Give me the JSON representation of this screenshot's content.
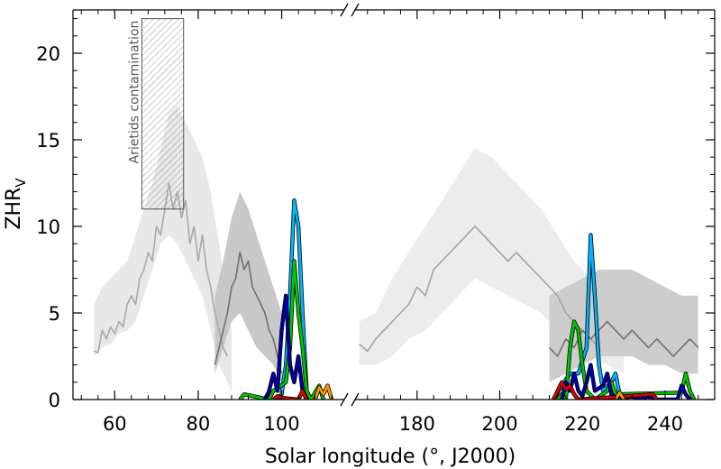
{
  "chart_data": {
    "type": "line",
    "xlabel": "Solar longitude (°, J2000)",
    "ylabel_main": "ZHR",
    "ylabel_sub": "V",
    "annotation": "Arietids contamination",
    "annotation_box": {
      "x": [
        66.5,
        76.5
      ],
      "y": [
        11,
        22
      ]
    },
    "ylim": [
      0,
      22.5
    ],
    "yticks": [
      0,
      5,
      10,
      15,
      20
    ],
    "panels": [
      {
        "xlim": [
          50,
          115
        ],
        "xticks": [
          60,
          80,
          100
        ]
      },
      {
        "xlim": [
          165,
          252
        ],
        "xticks": [
          180,
          200,
          220,
          240
        ]
      }
    ],
    "bands": [
      {
        "name": "light band left",
        "color": "#e8e8e8",
        "points": [
          [
            55,
            2.5,
            5.5
          ],
          [
            57,
            3,
            6.5
          ],
          [
            59,
            3.2,
            7
          ],
          [
            61,
            3.8,
            7.5
          ],
          [
            63,
            4,
            8
          ],
          [
            65,
            4.5,
            9.5
          ],
          [
            67,
            6,
            11
          ],
          [
            69,
            7.5,
            12.5
          ],
          [
            71,
            9,
            14.5
          ],
          [
            73,
            9.5,
            16.5
          ],
          [
            75,
            9,
            17
          ],
          [
            77,
            8,
            16
          ],
          [
            79,
            7,
            15
          ],
          [
            81,
            6,
            14
          ],
          [
            83,
            4,
            12
          ],
          [
            85,
            2,
            9
          ],
          [
            87,
            1,
            6
          ],
          [
            88,
            0.5,
            4
          ]
        ]
      },
      {
        "name": "dark band left",
        "color": "#c8c8c8",
        "points": [
          [
            84,
            1.5,
            6
          ],
          [
            86,
            3,
            8
          ],
          [
            88,
            4.5,
            10.5
          ],
          [
            90,
            5,
            12
          ],
          [
            92,
            4,
            11
          ],
          [
            94,
            3,
            9.5
          ],
          [
            96,
            2.5,
            8
          ],
          [
            98,
            2,
            6.5
          ],
          [
            100,
            1,
            5
          ]
        ]
      },
      {
        "name": "light band right",
        "color": "#ececec",
        "points": [
          [
            166,
            2,
            4.5
          ],
          [
            170,
            2,
            5
          ],
          [
            174,
            2.5,
            7
          ],
          [
            178,
            3.5,
            8.5
          ],
          [
            182,
            4,
            10
          ],
          [
            186,
            5,
            11.5
          ],
          [
            190,
            6,
            13
          ],
          [
            194,
            7,
            14.5
          ],
          [
            198,
            6.5,
            14
          ],
          [
            202,
            6,
            13
          ],
          [
            206,
            5.5,
            12
          ],
          [
            210,
            5,
            11
          ],
          [
            214,
            4,
            9.5
          ],
          [
            218,
            3,
            8
          ],
          [
            222,
            2.5,
            7
          ],
          [
            226,
            2,
            6
          ],
          [
            230,
            1.5,
            5.5
          ]
        ]
      },
      {
        "name": "dark band right",
        "color": "#cdcdcd",
        "points": [
          [
            212,
            1,
            6
          ],
          [
            216,
            1.5,
            6.5
          ],
          [
            220,
            2,
            7
          ],
          [
            224,
            2.5,
            7.5
          ],
          [
            228,
            2.5,
            7.5
          ],
          [
            232,
            2.5,
            7.5
          ],
          [
            236,
            2,
            7
          ],
          [
            240,
            2,
            6.5
          ],
          [
            244,
            1.5,
            6
          ],
          [
            248,
            1.5,
            6
          ]
        ]
      }
    ],
    "series": [
      {
        "color": "#a9a9a9",
        "width": 1.6,
        "points": [
          [
            55,
            2.8
          ],
          [
            56,
            2.7
          ],
          [
            57,
            4
          ],
          [
            58,
            3.5
          ],
          [
            59,
            4.2
          ],
          [
            60,
            3.8
          ],
          [
            61,
            4.5
          ],
          [
            62,
            4.2
          ],
          [
            63,
            5.5
          ],
          [
            64,
            6
          ],
          [
            65,
            5.5
          ],
          [
            66,
            7
          ],
          [
            67,
            7.5
          ],
          [
            68,
            8.5
          ],
          [
            69,
            8
          ],
          [
            70,
            10
          ],
          [
            71,
            9.5
          ],
          [
            72,
            11
          ],
          [
            73,
            12.5
          ],
          [
            74,
            11
          ],
          [
            75,
            12
          ],
          [
            76,
            10.5
          ],
          [
            77,
            11.5
          ],
          [
            78,
            9
          ],
          [
            79,
            10
          ],
          [
            80,
            8
          ],
          [
            81,
            9.5
          ],
          [
            82,
            7.5
          ],
          [
            83,
            6.5
          ],
          [
            84,
            5
          ],
          [
            85,
            4
          ],
          [
            86,
            3
          ],
          [
            87,
            2.5
          ]
        ]
      },
      {
        "color": "#6e6e6e",
        "width": 1.6,
        "points": [
          [
            84,
            2
          ],
          [
            85,
            3
          ],
          [
            86,
            4
          ],
          [
            87,
            5
          ],
          [
            88,
            6.5
          ],
          [
            89,
            7
          ],
          [
            90,
            8.5
          ],
          [
            91,
            7.5
          ],
          [
            92,
            8
          ],
          [
            93,
            6.5
          ],
          [
            94,
            6
          ],
          [
            95,
            5.5
          ],
          [
            96,
            5
          ],
          [
            97,
            4
          ],
          [
            98,
            3.5
          ],
          [
            99,
            2.5
          ],
          [
            100,
            1.5
          ]
        ]
      },
      {
        "color": "#a3a3a3",
        "width": 1.6,
        "points": [
          [
            166,
            3.2
          ],
          [
            168,
            2.8
          ],
          [
            170,
            3.5
          ],
          [
            172,
            4
          ],
          [
            174,
            4.5
          ],
          [
            176,
            5
          ],
          [
            178,
            5.5
          ],
          [
            180,
            6.5
          ],
          [
            182,
            6
          ],
          [
            184,
            7.5
          ],
          [
            186,
            8
          ],
          [
            188,
            8.5
          ],
          [
            190,
            9
          ],
          [
            192,
            9.5
          ],
          [
            194,
            10
          ],
          [
            196,
            9.5
          ],
          [
            198,
            9
          ],
          [
            200,
            8.5
          ],
          [
            202,
            8
          ],
          [
            204,
            8.5
          ],
          [
            206,
            8
          ],
          [
            208,
            7.5
          ],
          [
            210,
            7
          ],
          [
            212,
            6.5
          ],
          [
            214,
            6
          ],
          [
            216,
            5
          ],
          [
            218,
            4.5
          ],
          [
            220,
            4
          ],
          [
            222,
            3.5
          ],
          [
            224,
            3
          ]
        ]
      },
      {
        "color": "#707070",
        "width": 1.6,
        "points": [
          [
            212,
            3
          ],
          [
            214,
            2.5
          ],
          [
            216,
            3.5
          ],
          [
            218,
            3
          ],
          [
            220,
            4
          ],
          [
            222,
            3.5
          ],
          [
            224,
            4
          ],
          [
            226,
            4.5
          ],
          [
            228,
            4
          ],
          [
            230,
            3.5
          ],
          [
            232,
            4
          ],
          [
            234,
            3.5
          ],
          [
            236,
            3
          ],
          [
            238,
            3.5
          ],
          [
            240,
            3
          ],
          [
            242,
            2.5
          ],
          [
            244,
            3
          ],
          [
            246,
            3.5
          ],
          [
            248,
            3
          ]
        ]
      },
      {
        "color": "#00b4ff",
        "width": 2.8,
        "points": [
          [
            99,
            0
          ],
          [
            100,
            0.3
          ],
          [
            101,
            2
          ],
          [
            102,
            6
          ],
          [
            103,
            11.5
          ],
          [
            104,
            10
          ],
          [
            105,
            5
          ],
          [
            106,
            0.5
          ],
          [
            107,
            0
          ]
        ]
      },
      {
        "color": "#00c800",
        "width": 2.8,
        "points": [
          [
            90,
            0
          ],
          [
            91,
            0.3
          ],
          [
            97,
            0
          ],
          [
            98,
            0.5
          ],
          [
            101,
            1
          ],
          [
            102,
            3
          ],
          [
            103,
            8
          ],
          [
            104,
            5
          ],
          [
            105,
            3
          ],
          [
            106,
            0.5
          ],
          [
            107,
            0
          ],
          [
            109,
            0.8
          ],
          [
            110,
            0
          ]
        ]
      },
      {
        "color": "#0000aa",
        "width": 2.8,
        "points": [
          [
            96,
            0
          ],
          [
            97,
            0.5
          ],
          [
            98,
            1.5
          ],
          [
            99,
            0.5
          ],
          [
            100,
            4
          ],
          [
            101,
            6
          ],
          [
            102,
            2
          ],
          [
            103,
            1
          ],
          [
            104,
            2.5
          ],
          [
            105,
            0.5
          ],
          [
            106,
            0
          ]
        ]
      },
      {
        "color": "#dd0000",
        "width": 2.8,
        "points": [
          [
            98,
            0
          ],
          [
            99,
            0.2
          ],
          [
            100,
            0.1
          ],
          [
            104,
            0
          ],
          [
            105,
            0.5
          ],
          [
            106,
            0
          ]
        ]
      },
      {
        "color": "#ff9900",
        "width": 2.8,
        "points": [
          [
            108,
            0
          ],
          [
            109,
            0.7
          ],
          [
            110,
            0.3
          ],
          [
            111,
            0.8
          ],
          [
            112,
            0
          ]
        ]
      },
      {
        "color": "#00b4ff",
        "width": 2.8,
        "points": [
          [
            213,
            0
          ],
          [
            215,
            0.8
          ],
          [
            217,
            1.5
          ],
          [
            219,
            1.5
          ],
          [
            221,
            3
          ],
          [
            222,
            9.5
          ],
          [
            223,
            6
          ],
          [
            224,
            2
          ],
          [
            225,
            0.5
          ],
          [
            227,
            1
          ],
          [
            228,
            1.5
          ],
          [
            229,
            0.3
          ],
          [
            230,
            0
          ]
        ]
      },
      {
        "color": "#00c800",
        "width": 2.8,
        "points": [
          [
            214,
            0
          ],
          [
            215,
            0.3
          ],
          [
            216,
            0
          ],
          [
            217,
            3
          ],
          [
            218,
            4.5
          ],
          [
            219,
            4
          ],
          [
            220,
            2
          ],
          [
            221,
            0.5
          ],
          [
            223,
            0
          ],
          [
            226,
            0.5
          ],
          [
            227,
            1
          ],
          [
            228,
            0.3
          ],
          [
            244,
            0.4
          ],
          [
            245,
            1.5
          ],
          [
            246,
            0.5
          ],
          [
            247,
            0
          ]
        ]
      },
      {
        "color": "#0000aa",
        "width": 2.8,
        "points": [
          [
            215,
            0
          ],
          [
            216,
            1
          ],
          [
            217,
            0.5
          ],
          [
            218,
            1.5
          ],
          [
            219,
            0.5
          ],
          [
            220,
            0.2
          ],
          [
            221,
            1
          ],
          [
            222,
            2
          ],
          [
            223,
            0.5
          ],
          [
            225,
            0.8
          ],
          [
            226,
            1.5
          ],
          [
            227,
            0.3
          ],
          [
            229,
            0
          ],
          [
            232,
            0.2
          ],
          [
            234,
            0
          ],
          [
            236,
            0.2
          ],
          [
            238,
            0
          ],
          [
            243,
            0
          ],
          [
            244,
            0.8
          ],
          [
            245,
            0.3
          ],
          [
            246,
            0
          ]
        ]
      },
      {
        "color": "#dd0000",
        "width": 2.8,
        "points": [
          [
            213,
            0
          ],
          [
            214,
            0.5
          ],
          [
            215,
            1
          ],
          [
            216,
            0.6
          ],
          [
            217,
            0.8
          ],
          [
            218,
            0.3
          ],
          [
            219,
            0
          ],
          [
            237,
            0.3
          ],
          [
            238,
            0
          ]
        ]
      },
      {
        "color": "#ff9900",
        "width": 2.8,
        "points": [
          [
            228,
            0
          ],
          [
            229,
            0.4
          ],
          [
            230,
            0
          ]
        ]
      }
    ]
  }
}
